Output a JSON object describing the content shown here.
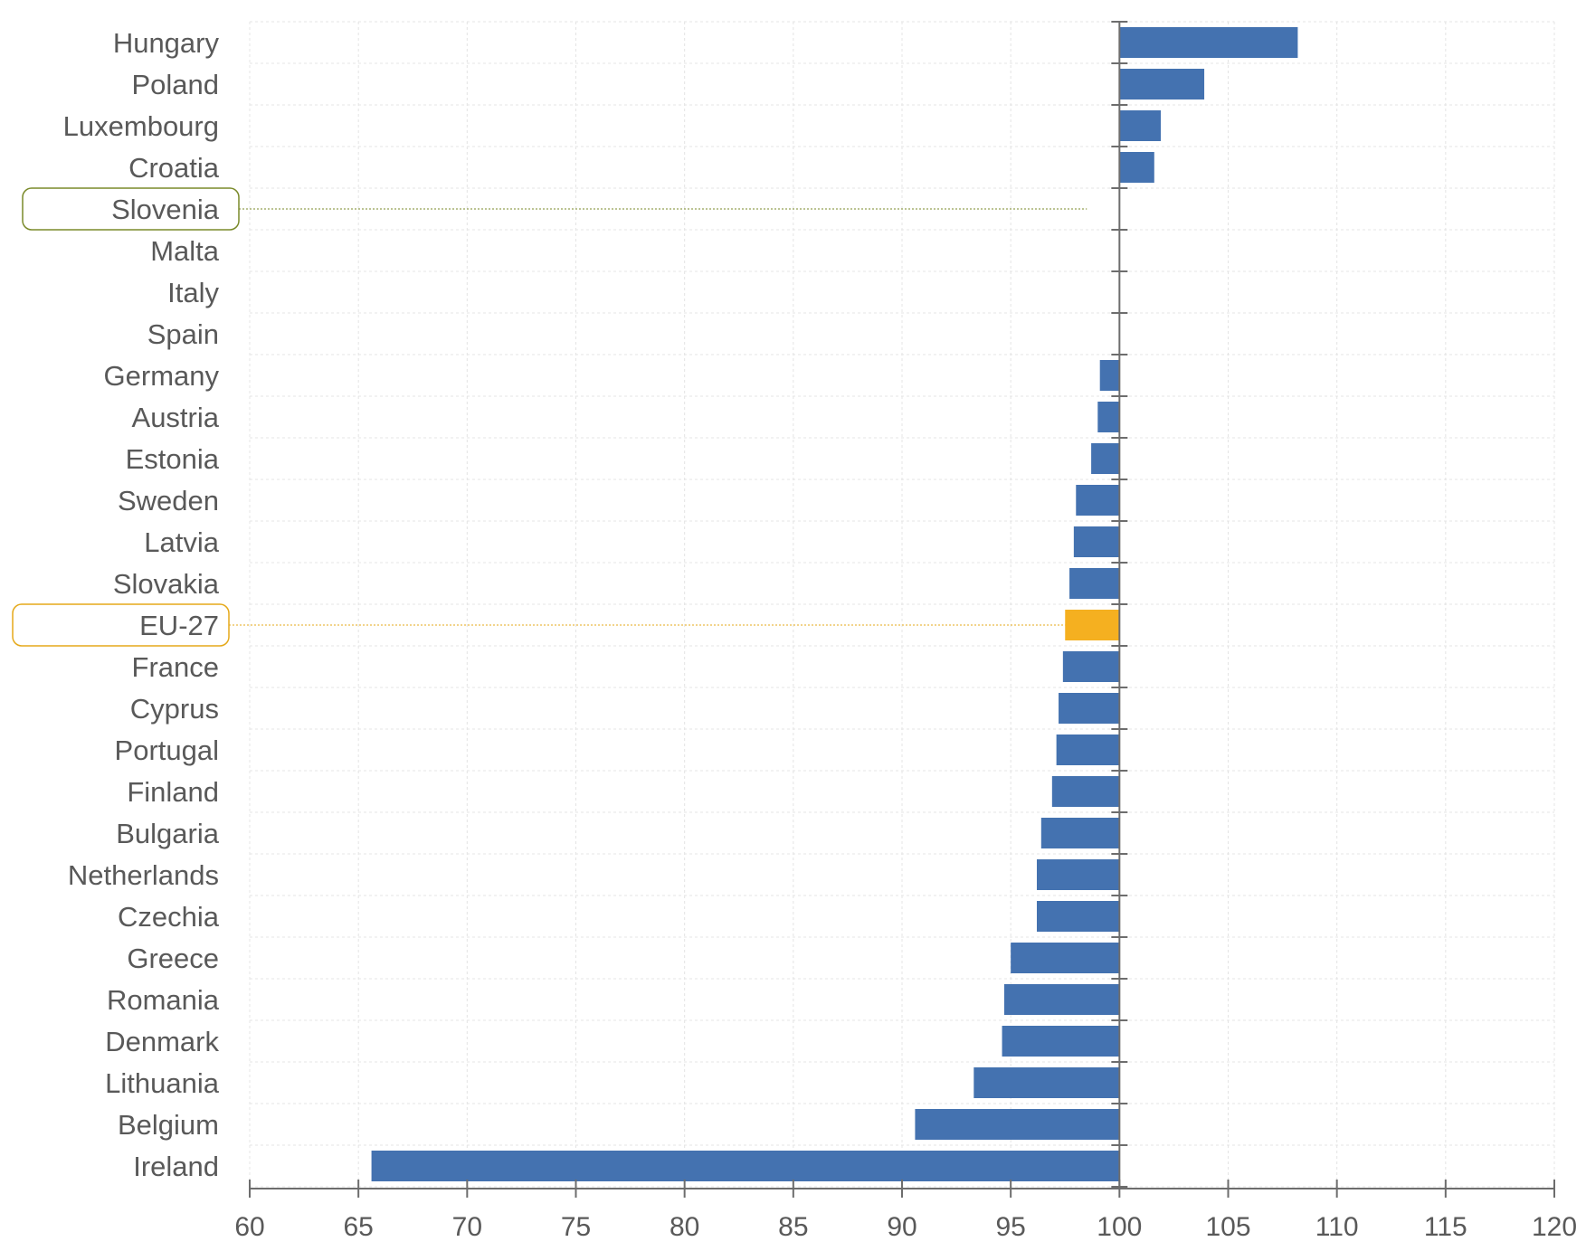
{
  "chart_data": {
    "type": "bar",
    "orientation": "horizontal",
    "categories": [
      "Hungary",
      "Poland",
      "Luxembourg",
      "Croatia",
      "Slovenia",
      "Malta",
      "Italy",
      "Spain",
      "Germany",
      "Austria",
      "Estonia",
      "Sweden",
      "Latvia",
      "Slovakia",
      "EU-27",
      "France",
      "Cyprus",
      "Portugal",
      "Finland",
      "Bulgaria",
      "Netherlands",
      "Czechia",
      "Greece",
      "Romania",
      "Denmark",
      "Lithuania",
      "Belgium",
      "Ireland"
    ],
    "values": [
      108.2,
      103.9,
      101.9,
      101.6,
      null,
      100.0,
      100.0,
      100.0,
      99.1,
      99.0,
      98.7,
      98.0,
      97.9,
      97.7,
      97.5,
      97.4,
      97.2,
      97.1,
      96.9,
      96.4,
      96.2,
      96.2,
      95.0,
      94.7,
      94.6,
      93.3,
      90.6,
      65.6
    ],
    "baseline": 100,
    "xlim": [
      60,
      120
    ],
    "xticks": [
      60,
      65,
      70,
      75,
      80,
      85,
      90,
      95,
      100,
      105,
      110,
      115,
      120
    ],
    "grid": true,
    "highlighted": [
      "Slovenia",
      "EU-27"
    ],
    "title": "",
    "xlabel": "",
    "ylabel": "",
    "colors": {
      "bar": "#4472B0",
      "highlight_bar": "#F5B020",
      "slovenia_marker": "#7A8A2A",
      "eu_marker": "#E5A91A",
      "axis": "#6D6D6D",
      "grid": "#E4E4E4",
      "label": "#595959"
    }
  }
}
